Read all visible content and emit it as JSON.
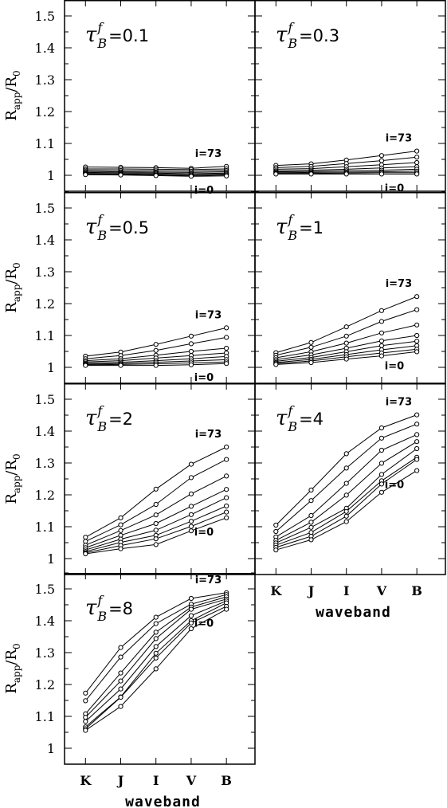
{
  "chart_data": {
    "type": "line",
    "categories": [
      "K",
      "J",
      "I",
      "V",
      "B"
    ],
    "xlabel": "waveband",
    "ylabel": {
      "main": "R",
      "sub1": "app",
      "slash": "/R",
      "sub2": "0"
    },
    "ylim": [
      0.95,
      1.55
    ],
    "yticks": [
      "1",
      "1.1",
      "1.2",
      "1.3",
      "1.4",
      "1.5"
    ],
    "top_annotation": "i=73",
    "bottom_annotation": "i=0",
    "panels": [
      {
        "tau_symbol": "τ",
        "tau_sup": "f",
        "tau_sub": "B",
        "tau_value": "=0.1",
        "series": [
          [
            1.026,
            1.025,
            1.024,
            1.022,
            1.028
          ],
          [
            1.02,
            1.02,
            1.019,
            1.018,
            1.02
          ],
          [
            1.016,
            1.015,
            1.014,
            1.013,
            1.015
          ],
          [
            1.012,
            1.011,
            1.01,
            1.009,
            1.011
          ],
          [
            1.009,
            1.008,
            1.007,
            1.005,
            1.007
          ],
          [
            1.006,
            1.005,
            1.004,
            1.002,
            1.004
          ],
          [
            1.004,
            1.003,
            1.001,
            0.999,
            1.001
          ],
          [
            1.002,
            1.001,
            0.999,
            0.997,
            0.998
          ]
        ]
      },
      {
        "tau_symbol": "τ",
        "tau_sup": "f",
        "tau_sub": "B",
        "tau_value": "=0.3",
        "series": [
          [
            1.031,
            1.036,
            1.048,
            1.062,
            1.076
          ],
          [
            1.024,
            1.028,
            1.037,
            1.046,
            1.057
          ],
          [
            1.019,
            1.021,
            1.027,
            1.033,
            1.04
          ],
          [
            1.014,
            1.016,
            1.019,
            1.023,
            1.027
          ],
          [
            1.011,
            1.012,
            1.014,
            1.016,
            1.019
          ],
          [
            1.008,
            1.009,
            1.01,
            1.011,
            1.013
          ],
          [
            1.006,
            1.006,
            1.007,
            1.008,
            1.008
          ],
          [
            1.004,
            1.004,
            1.004,
            1.004,
            1.004
          ]
        ]
      },
      {
        "tau_symbol": "τ",
        "tau_sup": "f",
        "tau_sub": "B",
        "tau_value": "=0.5",
        "series": [
          [
            1.035,
            1.048,
            1.072,
            1.098,
            1.124
          ],
          [
            1.027,
            1.037,
            1.053,
            1.074,
            1.094
          ],
          [
            1.021,
            1.027,
            1.038,
            1.05,
            1.06
          ],
          [
            1.017,
            1.021,
            1.029,
            1.037,
            1.045
          ],
          [
            1.013,
            1.016,
            1.021,
            1.027,
            1.034
          ],
          [
            1.01,
            1.012,
            1.016,
            1.02,
            1.024
          ],
          [
            1.008,
            1.009,
            1.011,
            1.014,
            1.017
          ],
          [
            1.006,
            1.006,
            1.006,
            1.008,
            1.012
          ]
        ]
      },
      {
        "tau_symbol": "τ",
        "tau_sup": "f",
        "tau_sub": "B",
        "tau_value": "=1",
        "series": [
          [
            1.046,
            1.078,
            1.127,
            1.178,
            1.222
          ],
          [
            1.038,
            1.063,
            1.098,
            1.144,
            1.181
          ],
          [
            1.03,
            1.049,
            1.076,
            1.108,
            1.133
          ],
          [
            1.024,
            1.039,
            1.06,
            1.083,
            1.1
          ],
          [
            1.019,
            1.031,
            1.049,
            1.068,
            1.082
          ],
          [
            1.015,
            1.025,
            1.04,
            1.055,
            1.068
          ],
          [
            1.012,
            1.02,
            1.033,
            1.045,
            1.057
          ],
          [
            1.009,
            1.015,
            1.026,
            1.036,
            1.049
          ]
        ]
      },
      {
        "tau_symbol": "τ",
        "tau_sup": "f",
        "tau_sub": "B",
        "tau_value": "=2",
        "series": [
          [
            1.067,
            1.128,
            1.218,
            1.296,
            1.35
          ],
          [
            1.054,
            1.106,
            1.17,
            1.254,
            1.311
          ],
          [
            1.042,
            1.088,
            1.137,
            1.203,
            1.259
          ],
          [
            1.034,
            1.073,
            1.11,
            1.164,
            1.217
          ],
          [
            1.027,
            1.061,
            1.089,
            1.138,
            1.191
          ],
          [
            1.022,
            1.051,
            1.073,
            1.117,
            1.165
          ],
          [
            1.018,
            1.041,
            1.062,
            1.101,
            1.146
          ],
          [
            1.015,
            1.031,
            1.044,
            1.087,
            1.128
          ]
        ]
      },
      {
        "tau_symbol": "τ",
        "tau_sup": "f",
        "tau_sub": "B",
        "tau_value": "=4",
        "series": [
          [
            1.105,
            1.215,
            1.329,
            1.41,
            1.451
          ],
          [
            1.085,
            1.182,
            1.284,
            1.378,
            1.422
          ],
          [
            1.068,
            1.135,
            1.236,
            1.34,
            1.389
          ],
          [
            1.057,
            1.114,
            1.199,
            1.299,
            1.367
          ],
          [
            1.049,
            1.098,
            1.158,
            1.264,
            1.345
          ],
          [
            1.042,
            1.082,
            1.148,
            1.244,
            1.318
          ],
          [
            1.035,
            1.07,
            1.133,
            1.234,
            1.311
          ],
          [
            1.027,
            1.059,
            1.116,
            1.208,
            1.276
          ]
        ]
      },
      {
        "tau_symbol": "τ",
        "tau_sup": "f",
        "tau_sub": "B",
        "tau_value": "=8",
        "series": [
          [
            1.173,
            1.316,
            1.411,
            1.47,
            1.488
          ],
          [
            1.149,
            1.286,
            1.391,
            1.452,
            1.482
          ],
          [
            1.108,
            1.236,
            1.364,
            1.443,
            1.475
          ],
          [
            1.097,
            1.211,
            1.344,
            1.436,
            1.468
          ],
          [
            1.084,
            1.186,
            1.319,
            1.416,
            1.462
          ],
          [
            1.067,
            1.161,
            1.298,
            1.4,
            1.456
          ],
          [
            1.061,
            1.16,
            1.283,
            1.393,
            1.445
          ],
          [
            1.056,
            1.131,
            1.249,
            1.375,
            1.436
          ]
        ]
      }
    ]
  }
}
